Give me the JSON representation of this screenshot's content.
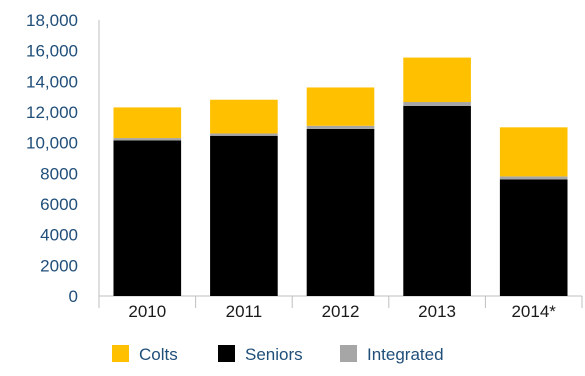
{
  "chart_data": {
    "type": "bar",
    "stacked": true,
    "categories": [
      "2010",
      "2011",
      "2012",
      "2013",
      "2014*"
    ],
    "series": [
      {
        "name": "Seniors",
        "color": "#000000",
        "values": [
          10150,
          10450,
          10900,
          12400,
          7600
        ]
      },
      {
        "name": "Integrated",
        "color": "#a6a6a6",
        "values": [
          150,
          150,
          200,
          250,
          200
        ]
      },
      {
        "name": "Colts",
        "color": "#ffc000",
        "values": [
          2000,
          2200,
          2500,
          2900,
          3200
        ]
      }
    ],
    "legend_order": [
      "Colts",
      "Seniors",
      "Integrated"
    ],
    "yticks": [
      "0",
      "2000",
      "4000",
      "6000",
      "8000",
      "10,000",
      "12,000",
      "14,000",
      "16,000",
      "18,000"
    ],
    "ylim": [
      0,
      18000
    ],
    "grid": false,
    "legend_position": "bottom"
  }
}
